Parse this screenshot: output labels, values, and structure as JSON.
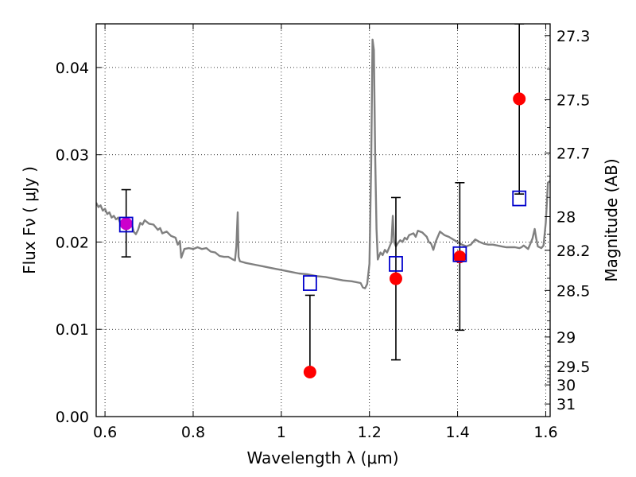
{
  "chart_data": {
    "type": "scatter",
    "xlabel": "Wavelength  λ (μm)",
    "ylabel": "Flux  Fν  ( μJy )",
    "ylabel_right": "Magnitude (AB)",
    "xlim": [
      0.58,
      1.61
    ],
    "ylim": [
      0.0,
      0.045
    ],
    "grid": true,
    "x_ticks": [
      {
        "value": 0.6,
        "label": "0.6"
      },
      {
        "value": 0.8,
        "label": "0.8"
      },
      {
        "value": 1.0,
        "label": "1"
      },
      {
        "value": 1.2,
        "label": "1.2"
      },
      {
        "value": 1.4,
        "label": "1.4"
      },
      {
        "value": 1.6,
        "label": "1.6"
      }
    ],
    "y_ticks": [
      {
        "value": 0.0,
        "label": "0.00"
      },
      {
        "value": 0.01,
        "label": "0.01"
      },
      {
        "value": 0.02,
        "label": "0.02"
      },
      {
        "value": 0.03,
        "label": "0.03"
      },
      {
        "value": 0.04,
        "label": "0.04"
      }
    ],
    "right_ticks": [
      {
        "value": 27.3,
        "label": "27.3"
      },
      {
        "value": 27.5,
        "label": "27.5"
      },
      {
        "value": 27.7,
        "label": "27.7"
      },
      {
        "value": 28,
        "label": "28"
      },
      {
        "value": 28.2,
        "label": "28.2"
      },
      {
        "value": 28.5,
        "label": "28.5"
      },
      {
        "value": 29,
        "label": "29"
      },
      {
        "value": 29.5,
        "label": "29.5"
      },
      {
        "value": 30,
        "label": "30"
      },
      {
        "value": 31,
        "label": "31"
      }
    ],
    "right_minor_ticks": [
      27.4,
      27.6,
      27.8,
      27.9,
      28.1,
      28.3,
      28.4,
      28.6,
      28.7,
      28.8,
      28.9,
      29.1,
      29.2,
      29.3,
      29.4,
      29.6,
      29.7,
      29.8,
      29.9
    ],
    "series": [
      {
        "kind": "line",
        "color": "#808080",
        "points": [
          [
            0.58,
            0.0245
          ],
          [
            0.585,
            0.024
          ],
          [
            0.59,
            0.0242
          ],
          [
            0.595,
            0.0236
          ],
          [
            0.6,
            0.0238
          ],
          [
            0.605,
            0.0232
          ],
          [
            0.61,
            0.0234
          ],
          [
            0.615,
            0.0228
          ],
          [
            0.62,
            0.023
          ],
          [
            0.625,
            0.0226
          ],
          [
            0.63,
            0.0228
          ],
          [
            0.635,
            0.0221
          ],
          [
            0.64,
            0.0224
          ],
          [
            0.645,
            0.0218
          ],
          [
            0.65,
            0.022
          ],
          [
            0.655,
            0.0218
          ],
          [
            0.66,
            0.0222
          ],
          [
            0.665,
            0.0212
          ],
          [
            0.67,
            0.0209
          ],
          [
            0.675,
            0.0214
          ],
          [
            0.68,
            0.0222
          ],
          [
            0.685,
            0.022
          ],
          [
            0.69,
            0.0225
          ],
          [
            0.7,
            0.0221
          ],
          [
            0.71,
            0.022
          ],
          [
            0.72,
            0.0214
          ],
          [
            0.725,
            0.0216
          ],
          [
            0.73,
            0.021
          ],
          [
            0.74,
            0.0212
          ],
          [
            0.75,
            0.0207
          ],
          [
            0.76,
            0.0205
          ],
          [
            0.765,
            0.0197
          ],
          [
            0.77,
            0.0201
          ],
          [
            0.773,
            0.0182
          ],
          [
            0.78,
            0.0192
          ],
          [
            0.79,
            0.0193
          ],
          [
            0.8,
            0.0192
          ],
          [
            0.81,
            0.0194
          ],
          [
            0.82,
            0.0192
          ],
          [
            0.83,
            0.0193
          ],
          [
            0.84,
            0.0189
          ],
          [
            0.85,
            0.0188
          ],
          [
            0.86,
            0.0184
          ],
          [
            0.87,
            0.0183
          ],
          [
            0.88,
            0.0183
          ],
          [
            0.89,
            0.018
          ],
          [
            0.895,
            0.0179
          ],
          [
            0.898,
            0.0195
          ],
          [
            0.901,
            0.0234
          ],
          [
            0.903,
            0.0183
          ],
          [
            0.906,
            0.0178
          ],
          [
            0.92,
            0.0176
          ],
          [
            0.94,
            0.0174
          ],
          [
            0.96,
            0.0172
          ],
          [
            0.98,
            0.017
          ],
          [
            1.0,
            0.0168
          ],
          [
            1.02,
            0.0166
          ],
          [
            1.04,
            0.0164
          ],
          [
            1.06,
            0.0163
          ],
          [
            1.08,
            0.0161
          ],
          [
            1.1,
            0.016
          ],
          [
            1.12,
            0.0158
          ],
          [
            1.14,
            0.0156
          ],
          [
            1.16,
            0.0155
          ],
          [
            1.18,
            0.0153
          ],
          [
            1.185,
            0.0148
          ],
          [
            1.19,
            0.0147
          ],
          [
            1.195,
            0.0152
          ],
          [
            1.2,
            0.0175
          ],
          [
            1.204,
            0.029
          ],
          [
            1.207,
            0.0432
          ],
          [
            1.21,
            0.042
          ],
          [
            1.213,
            0.03
          ],
          [
            1.216,
            0.0215
          ],
          [
            1.219,
            0.018
          ],
          [
            1.225,
            0.0188
          ],
          [
            1.23,
            0.0185
          ],
          [
            1.235,
            0.0191
          ],
          [
            1.24,
            0.0188
          ],
          [
            1.245,
            0.0194
          ],
          [
            1.25,
            0.02
          ],
          [
            1.253,
            0.023
          ],
          [
            1.256,
            0.02
          ],
          [
            1.26,
            0.0195
          ],
          [
            1.265,
            0.0199
          ],
          [
            1.27,
            0.0202
          ],
          [
            1.275,
            0.02
          ],
          [
            1.28,
            0.0205
          ],
          [
            1.285,
            0.0203
          ],
          [
            1.29,
            0.0208
          ],
          [
            1.3,
            0.021
          ],
          [
            1.305,
            0.0206
          ],
          [
            1.31,
            0.0213
          ],
          [
            1.32,
            0.0211
          ],
          [
            1.33,
            0.0206
          ],
          [
            1.335,
            0.02
          ],
          [
            1.34,
            0.0198
          ],
          [
            1.345,
            0.0191
          ],
          [
            1.35,
            0.02
          ],
          [
            1.36,
            0.0212
          ],
          [
            1.37,
            0.0208
          ],
          [
            1.38,
            0.0206
          ],
          [
            1.39,
            0.0203
          ],
          [
            1.4,
            0.02
          ],
          [
            1.41,
            0.0197
          ],
          [
            1.42,
            0.0195
          ],
          [
            1.43,
            0.0197
          ],
          [
            1.44,
            0.0203
          ],
          [
            1.45,
            0.02
          ],
          [
            1.46,
            0.0198
          ],
          [
            1.47,
            0.0197
          ],
          [
            1.48,
            0.0197
          ],
          [
            1.49,
            0.0196
          ],
          [
            1.5,
            0.0195
          ],
          [
            1.51,
            0.0194
          ],
          [
            1.52,
            0.0194
          ],
          [
            1.53,
            0.0194
          ],
          [
            1.54,
            0.0193
          ],
          [
            1.545,
            0.0194
          ],
          [
            1.55,
            0.0196
          ],
          [
            1.555,
            0.0194
          ],
          [
            1.56,
            0.0192
          ],
          [
            1.565,
            0.0198
          ],
          [
            1.57,
            0.0204
          ],
          [
            1.575,
            0.0215
          ],
          [
            1.578,
            0.0205
          ],
          [
            1.582,
            0.0195
          ],
          [
            1.59,
            0.0193
          ],
          [
            1.595,
            0.0196
          ],
          [
            1.6,
            0.0222
          ],
          [
            1.605,
            0.0268
          ],
          [
            1.61,
            0.027
          ]
        ]
      },
      {
        "kind": "points-with-errors",
        "marker": "circle",
        "color": "#ff0000",
        "points": [
          {
            "x": 1.065,
            "y": 0.0051,
            "yerr_low": 0.0051,
            "yerr_high": 0.0139
          },
          {
            "x": 1.26,
            "y": 0.0158,
            "yerr_low": 0.0065,
            "yerr_high": 0.0251
          },
          {
            "x": 1.405,
            "y": 0.0183,
            "yerr_low": 0.0099,
            "yerr_high": 0.0268
          },
          {
            "x": 1.54,
            "y": 0.0364,
            "yerr_low": 0.0255,
            "yerr_high": 0.045
          }
        ]
      },
      {
        "kind": "points-with-errors",
        "marker": "circle",
        "color": "#cc00cc",
        "points": [
          {
            "x": 0.648,
            "y": 0.0221,
            "yerr_low": 0.0183,
            "yerr_high": 0.026
          }
        ]
      },
      {
        "kind": "points",
        "marker": "square-open",
        "color": "#0000cc",
        "points": [
          {
            "x": 0.648,
            "y": 0.022
          },
          {
            "x": 1.065,
            "y": 0.0153
          },
          {
            "x": 1.26,
            "y": 0.0175
          },
          {
            "x": 1.405,
            "y": 0.0186
          },
          {
            "x": 1.54,
            "y": 0.025
          }
        ]
      }
    ]
  }
}
